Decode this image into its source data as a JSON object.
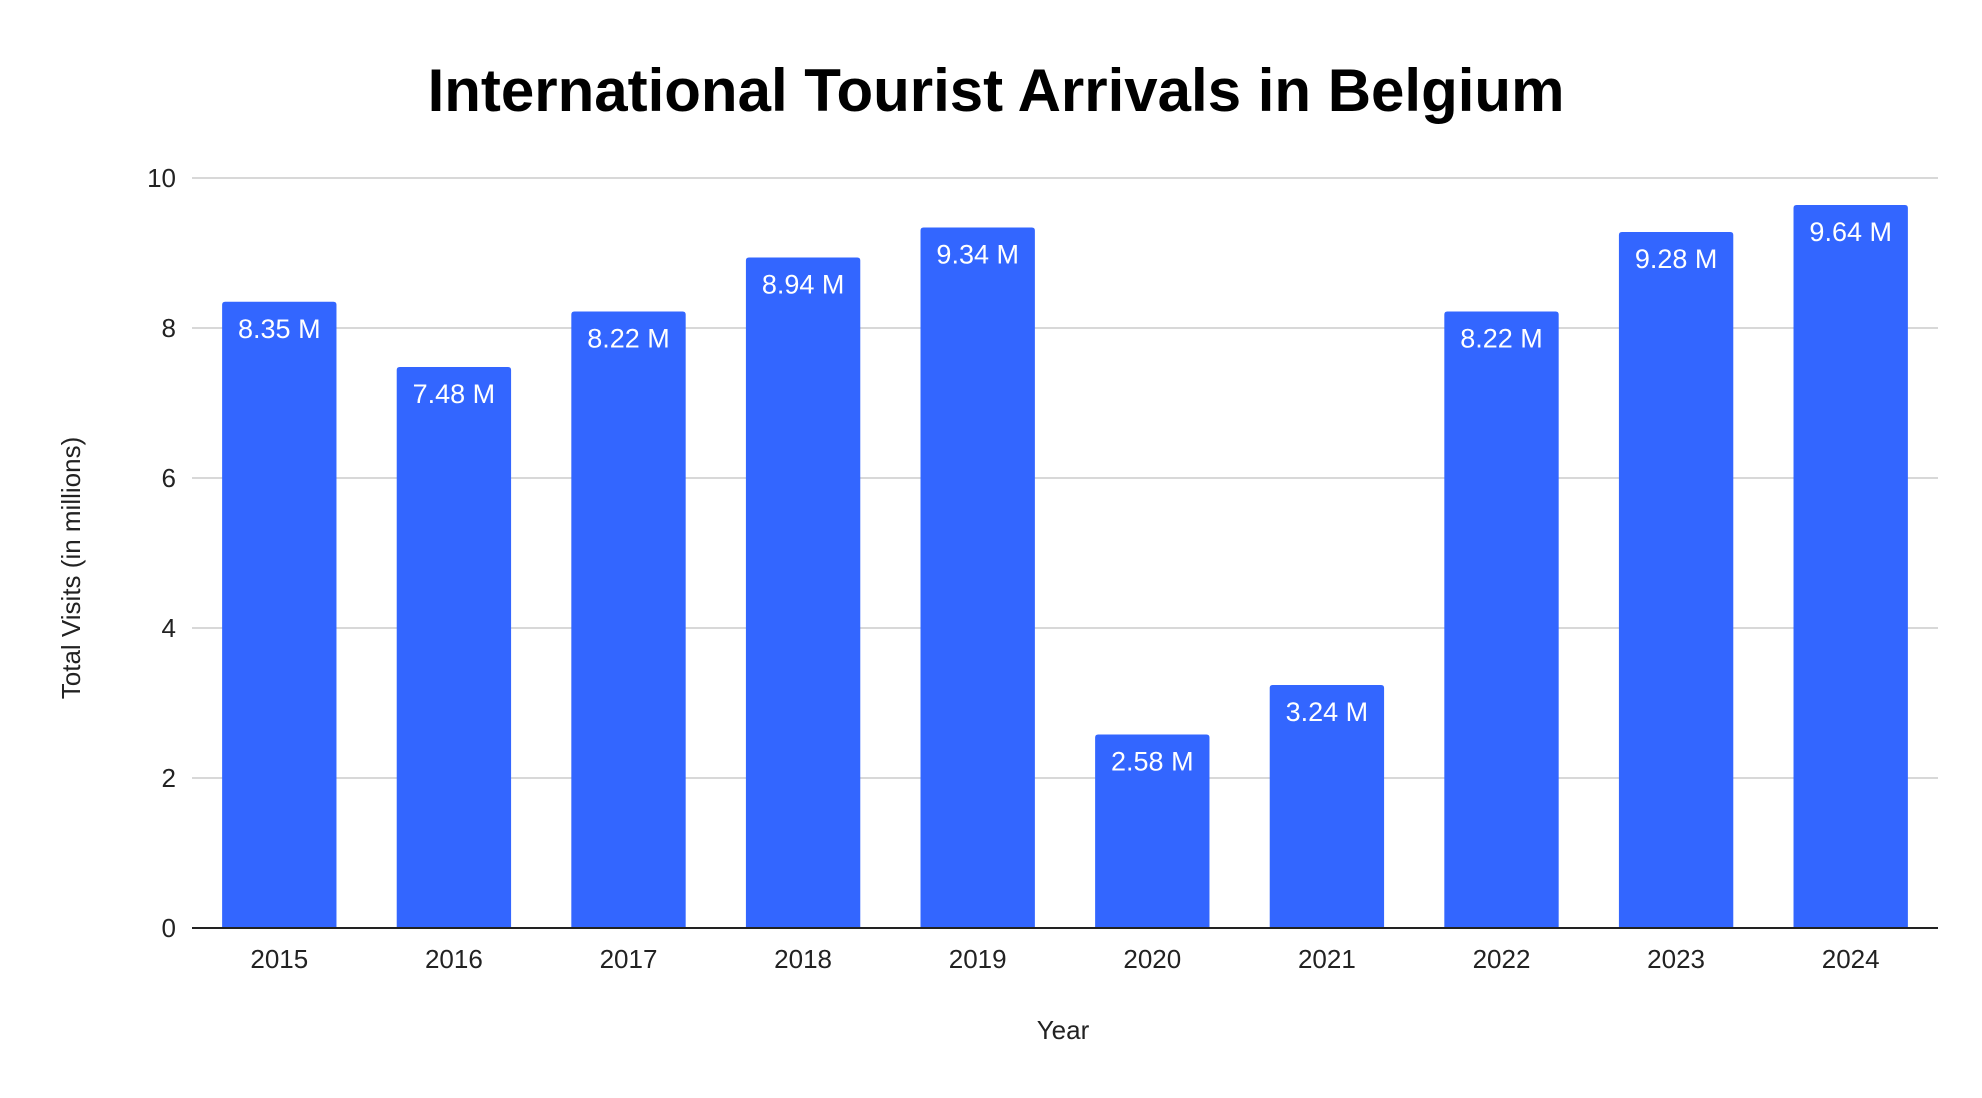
{
  "chart_data": {
    "type": "bar",
    "title": "International Tourist Arrivals in Belgium",
    "xlabel": "Year",
    "ylabel": "Total Visits (in millions)",
    "categories": [
      "2015",
      "2016",
      "2017",
      "2018",
      "2019",
      "2020",
      "2021",
      "2022",
      "2023",
      "2024"
    ],
    "values": [
      8.35,
      7.48,
      8.22,
      8.94,
      9.34,
      2.58,
      3.24,
      8.22,
      9.28,
      9.64
    ],
    "data_labels": [
      "8.35 M",
      "7.48 M",
      "8.22 M",
      "8.94 M",
      "9.34 M",
      "2.58 M",
      "3.24 M",
      "8.22 M",
      "9.28 M",
      "9.64 M"
    ],
    "ylim": [
      0,
      10
    ],
    "yticks": [
      "0",
      "2",
      "4",
      "6",
      "8",
      "10"
    ],
    "grid": true,
    "legend": "none",
    "bar_color": "#3366ff"
  }
}
